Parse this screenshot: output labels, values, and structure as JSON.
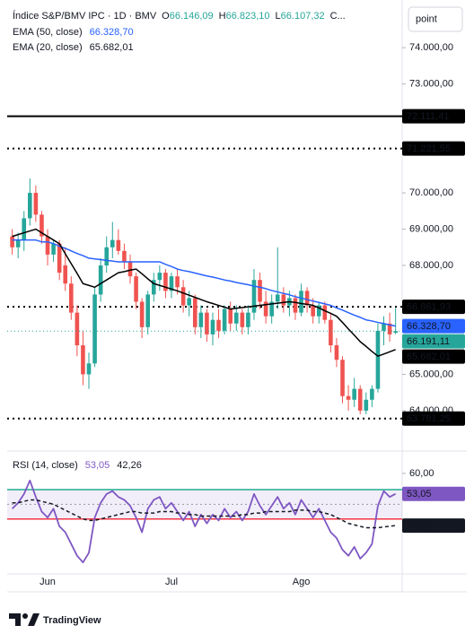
{
  "chart_data": [
    {
      "type": "candlestick",
      "title": "Índice S&P/BMV IPC · 1D · BMV",
      "ohlc_labels": [
        {
          "label": "O",
          "value": "66.146,09"
        },
        {
          "label": "H",
          "value": "66.823,10"
        },
        {
          "label": "L",
          "value": "66.107,32"
        },
        {
          "label": "C..."
        }
      ],
      "categories": [
        null,
        null,
        null,
        null,
        null,
        null,
        "Jun",
        null,
        null,
        null,
        null,
        null,
        null,
        null,
        null,
        null,
        null,
        null,
        null,
        null,
        null,
        null,
        null,
        null,
        null,
        null,
        null,
        "Jul",
        null,
        null,
        null,
        null,
        null,
        null,
        null,
        null,
        null,
        null,
        null,
        null,
        null,
        null,
        null,
        null,
        null,
        null,
        null,
        null,
        null,
        "Ago",
        null,
        null,
        null,
        null,
        null,
        null,
        null,
        null,
        null,
        null,
        null,
        null,
        null,
        null,
        null,
        null
      ],
      "open": [
        68800,
        68500,
        68700,
        69300,
        70000,
        69400,
        68800,
        68300,
        68600,
        68000,
        67500,
        66700,
        65800,
        65000,
        65300,
        67200,
        68000,
        68500,
        68700,
        68400,
        68100,
        67700,
        67000,
        66300,
        67200,
        67600,
        67800,
        67300,
        67700,
        67400,
        66900,
        67100,
        66300,
        66700,
        66100,
        66500,
        66200,
        66800,
        66400,
        66700,
        66300,
        66700,
        67600,
        67000,
        66600,
        67000,
        67200,
        66900,
        67100,
        66700,
        67300,
        66900,
        66600,
        66900,
        66500,
        65800,
        65400,
        64400,
        64300,
        64600,
        64000,
        64300,
        64600,
        66200,
        66400,
        66146.09
      ],
      "high": [
        69000,
        68900,
        69500,
        70400,
        70200,
        69500,
        69000,
        68700,
        68700,
        68500,
        67700,
        66900,
        66200,
        65600,
        67400,
        68200,
        68800,
        69200,
        69000,
        68600,
        68300,
        67800,
        67100,
        67300,
        67800,
        68000,
        67900,
        67800,
        67900,
        67600,
        67300,
        67200,
        66900,
        66800,
        66700,
        66800,
        66900,
        67000,
        66900,
        66800,
        66900,
        67900,
        67800,
        67300,
        67200,
        68500,
        67400,
        67300,
        67200,
        67500,
        67400,
        67100,
        67000,
        67000,
        66700,
        66000,
        65500,
        64700,
        64900,
        64700,
        64500,
        64700,
        66400,
        66600,
        66700,
        66823.1
      ],
      "low": [
        68300,
        68200,
        68400,
        69100,
        69200,
        68600,
        68000,
        68100,
        67600,
        67300,
        66500,
        65500,
        64700,
        64600,
        65200,
        67000,
        67800,
        68200,
        68300,
        67900,
        67500,
        66800,
        66000,
        66100,
        67000,
        67300,
        67100,
        67100,
        67200,
        66700,
        66600,
        66100,
        66000,
        65900,
        65800,
        66000,
        66100,
        66200,
        66200,
        66100,
        66100,
        66500,
        66800,
        66400,
        66400,
        66800,
        66700,
        66600,
        66500,
        66600,
        66700,
        66400,
        66400,
        66400,
        65600,
        65200,
        64200,
        64000,
        64100,
        63900,
        63900,
        64100,
        64500,
        65800,
        65900,
        66107.32
      ],
      "close": [
        68500,
        68700,
        69300,
        70000,
        69400,
        68800,
        68300,
        68600,
        67800,
        67500,
        66700,
        65800,
        65000,
        65300,
        67200,
        68000,
        68500,
        68700,
        68400,
        68100,
        67700,
        67000,
        66300,
        67200,
        67600,
        67800,
        67300,
        67700,
        67400,
        66900,
        67100,
        66300,
        66700,
        66100,
        66500,
        66200,
        66800,
        66400,
        66700,
        66300,
        66700,
        67600,
        67000,
        66600,
        67000,
        67200,
        66900,
        67100,
        66700,
        67300,
        66900,
        66600,
        66900,
        66500,
        65800,
        65400,
        64400,
        64300,
        64600,
        64000,
        64300,
        64600,
        66200,
        66400,
        66100,
        66191.11
      ],
      "last_price_label": "66.191,11",
      "up_color": "#26a69a",
      "down_color": "#ef5350",
      "ylim": [
        62960,
        75190
      ],
      "yticks": [
        {
          "value": 74000,
          "label": "74.000,00"
        },
        {
          "value": 73000,
          "label": "73.000,00"
        },
        {
          "value": 70000,
          "label": "70.000,00"
        },
        {
          "value": 69000,
          "label": "69.000,00"
        },
        {
          "value": 68000,
          "label": "68.000,00"
        },
        {
          "value": 65000,
          "label": "65.000,00"
        },
        {
          "value": 64000,
          "label": "64.000,00"
        }
      ],
      "levels": [
        {
          "value": 72111.41,
          "label": "72.111,41",
          "style": "solid"
        },
        {
          "value": 71221.55,
          "label": "71.221,55",
          "style": "dotted"
        },
        {
          "value": 66861.93,
          "label": "66.861,93",
          "style": "dotted"
        },
        {
          "value": 63781.25,
          "label": "63.781,25",
          "style": "dotted"
        }
      ],
      "series": [
        {
          "name": "EMA (50, close)",
          "color": "#2962ff",
          "value_label": "66.328,70",
          "values": [
            68700,
            68700,
            68700,
            68700,
            68700,
            68650,
            68650,
            68600,
            68530,
            68470,
            68400,
            68330,
            68270,
            68200,
            68180,
            68160,
            68140,
            68120,
            68100,
            68100,
            68100,
            68100,
            68100,
            68100,
            68100,
            68100,
            68030,
            67970,
            67900,
            67860,
            67830,
            67790,
            67750,
            67710,
            67680,
            67640,
            67600,
            67570,
            67530,
            67500,
            67470,
            67430,
            67400,
            67360,
            67310,
            67270,
            67230,
            67190,
            67140,
            67100,
            67060,
            67020,
            66980,
            66940,
            66900,
            66830,
            66770,
            66700,
            66630,
            66570,
            66500,
            66470,
            66430,
            66400,
            66360,
            66328.7
          ]
        },
        {
          "name": "EMA (20, close)",
          "color": "#000000",
          "value_label": "65.682,01",
          "values": [
            68800,
            68850,
            68900,
            68950,
            69000,
            68900,
            68800,
            68700,
            68600,
            68320,
            68050,
            67780,
            67500,
            67450,
            67400,
            67500,
            67600,
            67700,
            67800,
            67830,
            67870,
            67900,
            67770,
            67630,
            67500,
            67450,
            67400,
            67350,
            67300,
            67240,
            67180,
            67120,
            67060,
            67000,
            66950,
            66900,
            66850,
            66800,
            66820,
            66840,
            66860,
            66880,
            66900,
            66920,
            66940,
            66960,
            66980,
            67000,
            66980,
            66950,
            66930,
            66900,
            66830,
            66750,
            66680,
            66600,
            66430,
            66250,
            66080,
            65900,
            65770,
            65630,
            65500,
            65560,
            65620,
            65682.01
          ]
        }
      ]
    },
    {
      "type": "line",
      "title": "RSI (14, close)",
      "ylim": [
        25.8,
        66.7
      ],
      "yticks": [
        {
          "value": 60,
          "label": "60,00"
        }
      ],
      "bands": {
        "upper": 54.5,
        "middle": 49.5,
        "lower": 44.5,
        "upper_color": "#22ab94",
        "lower_color": "#f23645",
        "fill": "#7e57c2"
      },
      "series": [
        {
          "color": "#7e57c2",
          "value_label": "53,05",
          "values": [
            48,
            50,
            53,
            57.6,
            52,
            47,
            45,
            48,
            42,
            40,
            36,
            32,
            29.7,
            33,
            45,
            50,
            53,
            54,
            52,
            51,
            49,
            45,
            40,
            48,
            51,
            52,
            48,
            50,
            47,
            44,
            47,
            42,
            46,
            43,
            46,
            44,
            48,
            45,
            47,
            44,
            47,
            53,
            49,
            46,
            49,
            52,
            48,
            50,
            46,
            51,
            48,
            45,
            48,
            44,
            40,
            38,
            34,
            32,
            35,
            31,
            33,
            36,
            49,
            54,
            52,
            53.05
          ]
        },
        {
          "color": "#131722",
          "dashed": true,
          "value_label": "42,26",
          "values": [
            50,
            50,
            50.5,
            51,
            51,
            50.5,
            50,
            49.5,
            48.5,
            47.5,
            46.5,
            45.5,
            44.5,
            44,
            44,
            44.5,
            45,
            45.5,
            46,
            46.5,
            47,
            47,
            46.5,
            46.5,
            46.5,
            47,
            47,
            47,
            46.5,
            46.5,
            46,
            46,
            45.5,
            45.5,
            45.5,
            45.5,
            45.5,
            45.5,
            45.5,
            46,
            46,
            46.5,
            46.5,
            47,
            47,
            47,
            47,
            47,
            47.5,
            47.5,
            47.5,
            47,
            47,
            46.5,
            46,
            45,
            44,
            43,
            42.5,
            42,
            41.5,
            41.5,
            41.5,
            41.8,
            42,
            42.26
          ]
        }
      ]
    }
  ],
  "ui": {
    "button": "point",
    "brand": "TradingView"
  }
}
